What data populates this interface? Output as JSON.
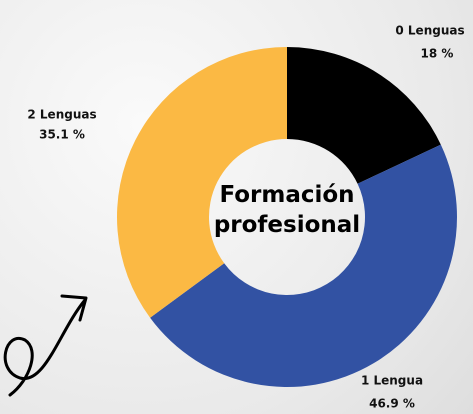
{
  "chart_data": {
    "type": "donut",
    "title": "Formación profesional",
    "categories": [
      "0 Lenguas",
      "1 Lengua",
      "2 Lenguas"
    ],
    "values": [
      18,
      46.9,
      35.1
    ],
    "value_labels": [
      "18 %",
      "46.9 %",
      "35.1 %"
    ],
    "colors": [
      "#000000",
      "#3252a3",
      "#fbb944"
    ]
  }
}
